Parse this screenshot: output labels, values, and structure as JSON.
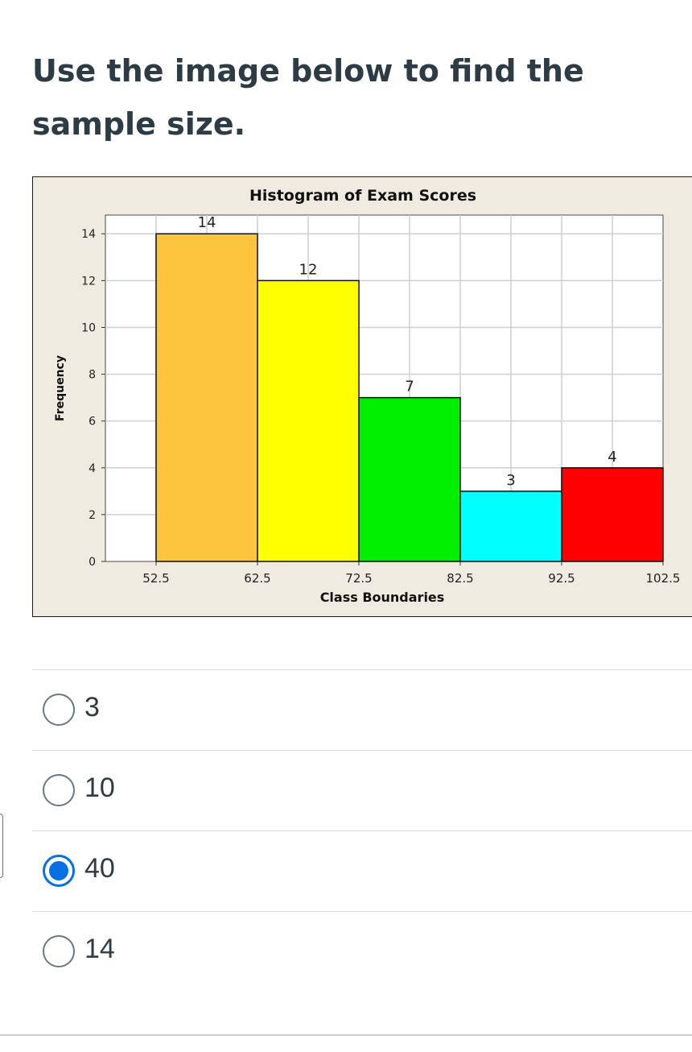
{
  "question": {
    "text": "Use the image below to find the sample size."
  },
  "chart_data": {
    "type": "bar",
    "title": "Histogram of Exam Scores",
    "xlabel": "Class Boundaries",
    "ylabel": "Frequency",
    "x_ticks": [
      "52.5",
      "62.5",
      "72.5",
      "82.5",
      "92.5",
      "102.5"
    ],
    "y_ticks": [
      "0",
      "2",
      "4",
      "6",
      "8",
      "10",
      "12",
      "14"
    ],
    "ylim": [
      0,
      14.8
    ],
    "xlim": [
      47.5,
      102.5
    ],
    "grid": true,
    "bins": [
      {
        "from": 52.5,
        "to": 62.5,
        "value": 14,
        "label": "14",
        "color": "#fdc43e"
      },
      {
        "from": 62.5,
        "to": 72.5,
        "value": 12,
        "label": "12",
        "color": "#ffff00"
      },
      {
        "from": 72.5,
        "to": 82.5,
        "value": 7,
        "label": "7",
        "color": "#00ee00"
      },
      {
        "from": 82.5,
        "to": 92.5,
        "value": 3,
        "label": "3",
        "color": "#00ffff"
      },
      {
        "from": 92.5,
        "to": 102.5,
        "value": 4,
        "label": "4",
        "color": "#ff0000"
      }
    ]
  },
  "choices": [
    {
      "label": "3",
      "selected": false
    },
    {
      "label": "10",
      "selected": false
    },
    {
      "label": "40",
      "selected": true
    },
    {
      "label": "14",
      "selected": false
    }
  ],
  "colors": {
    "accent": "#0770e2",
    "text": "#2d3b45",
    "chart_background": "#f0ebe1"
  }
}
